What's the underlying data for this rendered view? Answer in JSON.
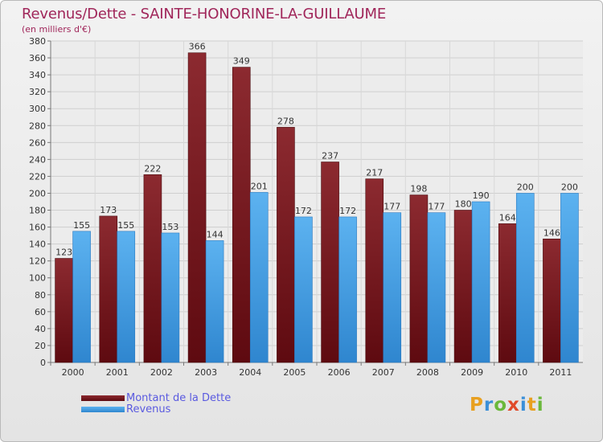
{
  "header": {
    "title": "Revenus/Dette - SAINTE-HONORINE-LA-GUILLAUME",
    "subtitle": "(en milliers d'€)"
  },
  "chart_data": {
    "type": "bar",
    "title": "Revenus/Dette - SAINTE-HONORINE-LA-GUILLAUME",
    "ylabel": "(en milliers d'€)",
    "xlabel": "",
    "categories": [
      "2000",
      "2001",
      "2002",
      "2003",
      "2004",
      "2005",
      "2006",
      "2007",
      "2008",
      "2009",
      "2010",
      "2011"
    ],
    "series": [
      {
        "name": "Montant de la Dette",
        "color": "#7a1c22",
        "values": [
          123,
          173,
          222,
          366,
          349,
          278,
          237,
          217,
          198,
          180,
          164,
          146
        ]
      },
      {
        "name": "Revenus",
        "color": "#4aa2e6",
        "values": [
          155,
          155,
          153,
          144,
          201,
          172,
          172,
          177,
          177,
          190,
          200,
          200
        ]
      }
    ],
    "ylim": [
      0,
      380
    ],
    "ytick_step": 20,
    "grid": true,
    "legend_position": "bottom-left"
  },
  "logo": {
    "text": "Proxiti",
    "letters": [
      "P",
      "r",
      "o",
      "x",
      "i",
      "t",
      "i"
    ],
    "colors": [
      "#e8a020",
      "#3a8fd8",
      "#6ab83a",
      "#e04a2a",
      "#3a8fd8",
      "#e8a020",
      "#6ab83a"
    ]
  }
}
